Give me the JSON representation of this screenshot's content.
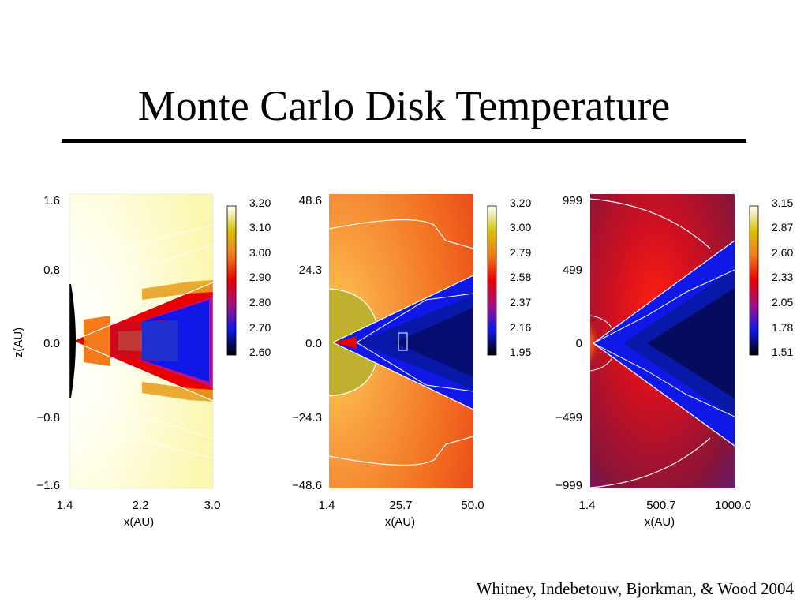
{
  "slide": {
    "title": "Monte Carlo Disk Temperature",
    "citation": "Whitney, Indebetouw, Bjorkman, & Wood 2004"
  },
  "chart_data": [
    {
      "type": "heatmap",
      "xlabel": "x(AU)",
      "ylabel": "z(AU)",
      "xlim": [
        1.4,
        3.0
      ],
      "ylim": [
        -1.6,
        1.6
      ],
      "x_ticks": [
        "1.4",
        "2.2",
        "3.0"
      ],
      "y_ticks": [
        "1.6",
        "0.8",
        "0.0",
        "−0.8",
        "−1.6"
      ],
      "colorbar_ticks": [
        "3.20",
        "3.10",
        "3.00",
        "2.90",
        "2.80",
        "2.70",
        "2.60"
      ],
      "colorbar_range": [
        2.6,
        3.2
      ],
      "disk_half_opening_slope": 0.26,
      "colormap": [
        "#000000",
        "#1018e8",
        "#a0108a",
        "#e80000",
        "#f47a1c",
        "#d8c000",
        "#ffffff"
      ]
    },
    {
      "type": "heatmap",
      "xlabel": "x(AU)",
      "ylabel": "",
      "xlim": [
        1.4,
        50.0
      ],
      "ylim": [
        -48.6,
        48.6
      ],
      "x_ticks": [
        "1.4",
        "25.7",
        "50.0"
      ],
      "y_ticks": [
        "48.6",
        "24.3",
        "0.0",
        "−24.3",
        "−48.6"
      ],
      "colorbar_ticks": [
        "3.20",
        "3.00",
        "2.79",
        "2.58",
        "2.37",
        "2.16",
        "1.95"
      ],
      "colorbar_range": [
        1.95,
        3.2
      ],
      "disk_half_opening_slope": 0.65,
      "colormap": [
        "#000000",
        "#1018e8",
        "#a0108a",
        "#e80000",
        "#f47a1c",
        "#d8c000",
        "#ffffff"
      ]
    },
    {
      "type": "heatmap",
      "xlabel": "x(AU)",
      "ylabel": "",
      "xlim": [
        1.4,
        1000.0
      ],
      "ylim": [
        -999,
        999
      ],
      "x_ticks": [
        "1.4",
        "500.7",
        "1000.0"
      ],
      "y_ticks": [
        "999",
        "499",
        "0",
        "−499",
        "−999"
      ],
      "colorbar_ticks": [
        "3.15",
        "2.87",
        "2.60",
        "2.33",
        "2.05",
        "1.78",
        "1.51"
      ],
      "colorbar_range": [
        1.51,
        3.15
      ],
      "disk_half_opening_slope": 0.62,
      "colormap": [
        "#000000",
        "#1018e8",
        "#a0108a",
        "#e80000",
        "#f47a1c",
        "#d8c000",
        "#ffffff"
      ]
    }
  ]
}
